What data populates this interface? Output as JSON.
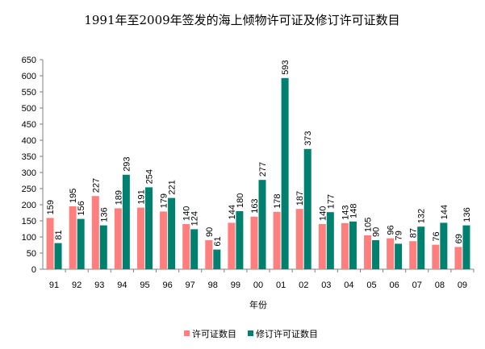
{
  "chart_data": {
    "type": "bar",
    "title": "1991年至2009年签发的海上倾物许可证及修订许可证数目",
    "xlabel": "年份",
    "ylabel": "",
    "ylim": [
      0,
      650
    ],
    "yticks": [
      0,
      50,
      100,
      150,
      200,
      250,
      300,
      350,
      400,
      450,
      500,
      550,
      600,
      650
    ],
    "categories": [
      "91",
      "92",
      "93",
      "94",
      "95",
      "96",
      "97",
      "98",
      "99",
      "00",
      "01",
      "02",
      "03",
      "04",
      "05",
      "06",
      "07",
      "08",
      "09"
    ],
    "series": [
      {
        "name": "许可证数目",
        "color": "#ff7f7f",
        "values": [
          159,
          195,
          227,
          189,
          191,
          179,
          140,
          90,
          144,
          163,
          178,
          187,
          140,
          143,
          105,
          96,
          87,
          76,
          69
        ]
      },
      {
        "name": "修订许可证数目",
        "color": "#00806e",
        "values": [
          81,
          156,
          136,
          293,
          254,
          221,
          124,
          61,
          180,
          277,
          593,
          373,
          177,
          148,
          90,
          79,
          132,
          144,
          136
        ]
      }
    ],
    "legend": "bottom",
    "grid": false,
    "data_labels": true
  }
}
